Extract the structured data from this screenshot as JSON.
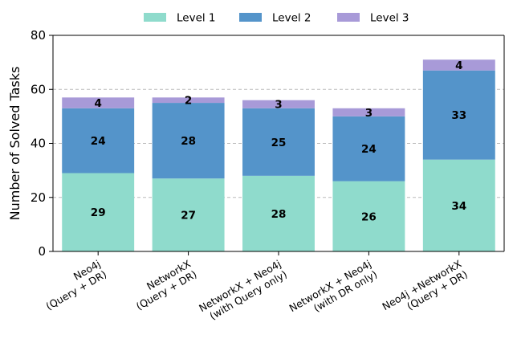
{
  "chart_data": {
    "type": "bar",
    "stacked": true,
    "title": "",
    "xlabel": "",
    "ylabel": "Number of Solved Tasks",
    "ylim": [
      0,
      80
    ],
    "yticks": [
      0,
      20,
      40,
      60,
      80
    ],
    "grid": "y-dashed",
    "legend_position": "top",
    "categories": [
      [
        "Neo4j",
        "(Query + DR)"
      ],
      [
        "NetworkX",
        "(Query + DR)"
      ],
      [
        "NetworkX + Neo4j",
        "(with Query only)"
      ],
      [
        "NetworkX + Neo4j",
        "(with DR only)"
      ],
      [
        "Neo4j +NetworkX",
        "(Query + DR)"
      ]
    ],
    "series": [
      {
        "name": "Level 1",
        "color": "#8fdbcc",
        "values": [
          29,
          27,
          28,
          26,
          34
        ]
      },
      {
        "name": "Level 2",
        "color": "#5494ca",
        "values": [
          24,
          28,
          25,
          24,
          33
        ]
      },
      {
        "name": "Level 3",
        "color": "#a89ad8",
        "values": [
          4,
          2,
          3,
          3,
          4
        ]
      }
    ]
  }
}
